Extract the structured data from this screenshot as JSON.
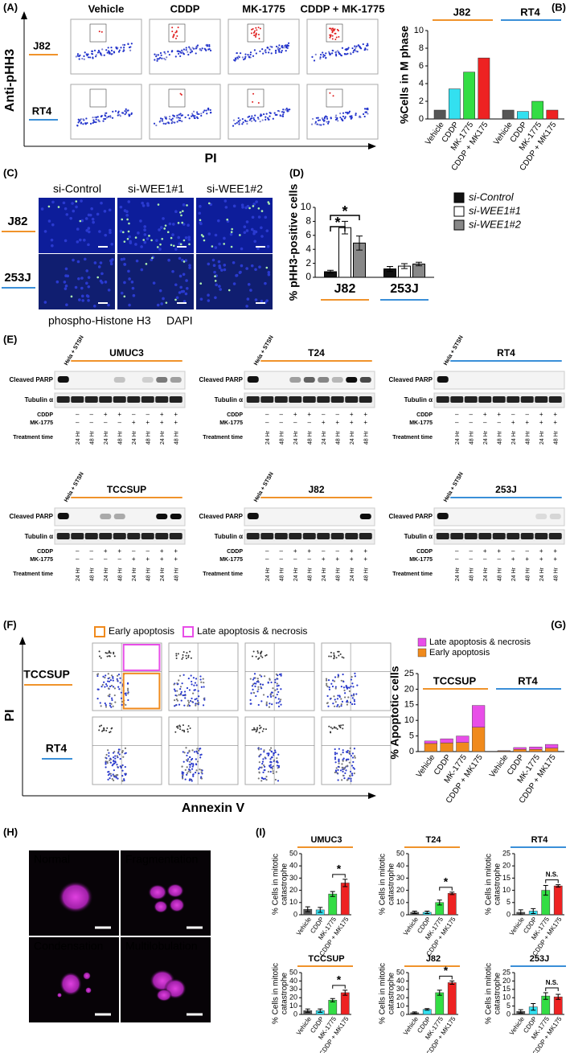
{
  "panel_a": {
    "label": "(A)",
    "columns": [
      "Vehicle",
      "CDDP",
      "MK-1775",
      "CDDP + MK-1775"
    ],
    "rows": [
      "J82",
      "RT4"
    ],
    "row_colors": [
      "#f0932b",
      "#3a8fd8"
    ],
    "y_label": "Anti-pHH3",
    "x_label": "PI"
  },
  "panel_c": {
    "label": "(C)",
    "columns": [
      "si-Control",
      "si-WEE1#1",
      "si-WEE1#2"
    ],
    "rows": [
      "J82",
      "253J"
    ],
    "row_colors": [
      "#f0932b",
      "#3a8fd8"
    ],
    "stains": [
      "phospho-Histone H3",
      "DAPI"
    ],
    "stain_colors": [
      "#22cc22",
      "#1a2ad8"
    ]
  },
  "panel_e": {
    "label": "(E)",
    "control_lane": "Hela + STSN",
    "bands": [
      "Cleaved PARP",
      "Tubulin α"
    ],
    "treatments": [
      "CDDP",
      "MK-1775"
    ],
    "lane_rows": [
      [
        "–",
        "–",
        "+",
        "+",
        "–",
        "–",
        "+",
        "+"
      ],
      [
        "–",
        "–",
        "–",
        "–",
        "+",
        "+",
        "+",
        "+"
      ]
    ],
    "time_label": "Treatment time",
    "times": [
      "24 Hr",
      "48 Hr",
      "24 Hr",
      "48 Hr",
      "24 Hr",
      "48 Hr",
      "24 Hr",
      "48 Hr"
    ],
    "blots": [
      {
        "name": "UMUC3",
        "line_color": "#f0932b"
      },
      {
        "name": "T24",
        "line_color": "#f0932b"
      },
      {
        "name": "RT4",
        "line_color": "#3a8fd8"
      },
      {
        "name": "TCCSUP",
        "line_color": "#f0932b"
      },
      {
        "name": "J82",
        "line_color": "#f0932b"
      },
      {
        "name": "253J",
        "line_color": "#3a8fd8"
      }
    ]
  },
  "panel_f": {
    "label": "(F)",
    "gates": [
      "Early apoptosis",
      "Late apoptosis & necrosis"
    ],
    "gate_colors": [
      "#f08a1c",
      "#e84ee8"
    ],
    "rows": [
      "TCCSUP",
      "RT4"
    ],
    "row_colors": [
      "#f0932b",
      "#3a8fd8"
    ],
    "y_label": "PI",
    "x_label": "Annexin V"
  },
  "panel_h": {
    "label": "(H)",
    "images": [
      "Normal",
      "Fragmentation",
      "Condensation",
      "Multilobulation"
    ]
  },
  "panel_i": {
    "label": "(I)"
  },
  "chart_data": [
    {
      "type": "bar",
      "panel_label": "(B)",
      "y_label": "%Cells in M phase",
      "ylim": [
        0,
        10
      ],
      "yticks": [
        0,
        2,
        4,
        6,
        8,
        10
      ],
      "bar_colors": [
        "#555555",
        "#33e0f0",
        "#33dd44",
        "#ee2222"
      ],
      "groups": [
        {
          "name": "J82",
          "color": "#f0932b",
          "categories": [
            "Vehicle",
            "CDDP",
            "MK-1775",
            "CDDP + MK175"
          ],
          "values": [
            1.0,
            3.4,
            5.3,
            6.9
          ]
        },
        {
          "name": "RT4",
          "color": "#3a8fd8",
          "categories": [
            "Vehicle",
            "CDDP",
            "MK-1775",
            "CDDP + MK175"
          ],
          "values": [
            1.0,
            0.85,
            2.0,
            1.0
          ]
        }
      ]
    },
    {
      "type": "grouped_bar",
      "panel_label": "(D)",
      "y_label": "% pHH3-positive cells",
      "ylim": [
        0,
        10
      ],
      "yticks": [
        0,
        2,
        4,
        6,
        8,
        10
      ],
      "categories": [
        "J82",
        "253J"
      ],
      "category_colors": [
        "#f0932b",
        "#3a8fd8"
      ],
      "series": [
        {
          "name": "si-Control",
          "color": "#111111",
          "values": [
            0.8,
            1.2
          ],
          "errors": [
            0.2,
            0.35
          ]
        },
        {
          "name": "si-WEE1#1",
          "color": "#ffffff",
          "values": [
            7.1,
            1.6
          ],
          "errors": [
            0.9,
            0.35
          ]
        },
        {
          "name": "si-WEE1#2",
          "color": "#888888",
          "values": [
            4.9,
            1.9
          ],
          "errors": [
            1.0,
            0.25
          ]
        }
      ],
      "annotations": [
        "*",
        "*"
      ]
    },
    {
      "type": "stacked_bar",
      "panel_label": "(G)",
      "y_label": "% Apoptotic cells",
      "ylim": [
        0,
        25
      ],
      "yticks": [
        0,
        5,
        10,
        15,
        20,
        25
      ],
      "series": [
        {
          "name": "Late apoptosis & necrosis",
          "color": "#e84ee8"
        },
        {
          "name": "Early apoptosis",
          "color": "#f08a1c"
        }
      ],
      "groups": [
        {
          "name": "TCCSUP",
          "color": "#f0932b",
          "categories": [
            "Vehicle",
            "CDDP",
            "MK-1775",
            "CDDP + MK175"
          ],
          "values": [
            [
              0.8,
              1.3,
              2.1,
              7.0
            ],
            [
              2.6,
              2.8,
              2.9,
              7.8
            ]
          ]
        },
        {
          "name": "RT4",
          "color": "#3a8fd8",
          "categories": [
            "Vehicle",
            "CDDP",
            "MK-1775",
            "CDDP + MK175"
          ],
          "values": [
            [
              0.1,
              0.6,
              0.8,
              1.2
            ],
            [
              0.2,
              0.7,
              0.7,
              1.1
            ]
          ]
        }
      ]
    },
    {
      "type": "bar",
      "title": "UMUC3",
      "title_color": "#f0932b",
      "y_label": [
        "% Cells in mitotic",
        "catastrophe"
      ],
      "ylim": [
        0,
        50
      ],
      "yticks": [
        0,
        10,
        20,
        30,
        40,
        50
      ],
      "categories": [
        "Vehicle",
        "CDDP",
        "MK-1775",
        "CDDP + MK175"
      ],
      "values": [
        4.5,
        4,
        17,
        26
      ],
      "errors": [
        2,
        2,
        2,
        3
      ],
      "colors": [
        "#555555",
        "#33e0f0",
        "#33dd44",
        "#ee2222"
      ],
      "annotation": "*"
    },
    {
      "type": "bar",
      "title": "T24",
      "title_color": "#f0932b",
      "y_label": [
        "% Cells in mitotic",
        "catastrophe"
      ],
      "ylim": [
        0,
        50
      ],
      "yticks": [
        0,
        10,
        20,
        30,
        40,
        50
      ],
      "categories": [
        "Vehicle",
        "CDDP",
        "MK-1775",
        "CDDP + MK175"
      ],
      "values": [
        2,
        2,
        10,
        17.5
      ],
      "errors": [
        1,
        1,
        2,
        1
      ],
      "colors": [
        "#555555",
        "#33e0f0",
        "#33dd44",
        "#ee2222"
      ],
      "annotation": "*"
    },
    {
      "type": "bar",
      "title": "RT4",
      "title_color": "#3a8fd8",
      "y_label": [
        "% Cells in mitotic",
        "catastrophe"
      ],
      "ylim": [
        0,
        25
      ],
      "yticks": [
        0,
        5,
        10,
        15,
        20,
        25
      ],
      "categories": [
        "Vehicle",
        "CDDP",
        "MK-1775",
        "CDDP + MK175"
      ],
      "values": [
        1,
        1.5,
        10,
        11.8
      ],
      "errors": [
        1,
        1,
        2,
        0.5
      ],
      "colors": [
        "#555555",
        "#33e0f0",
        "#33dd44",
        "#ee2222"
      ],
      "annotation": "N.S."
    },
    {
      "type": "bar",
      "title": "TCCSUP",
      "title_color": "#f0932b",
      "y_label": [
        "% Cells in mitotic",
        "catastrophe"
      ],
      "ylim": [
        0,
        50
      ],
      "yticks": [
        0,
        10,
        20,
        30,
        40,
        50
      ],
      "categories": [
        "Vehicle",
        "CDDP",
        "MK-1775",
        "CDDP + MK175"
      ],
      "values": [
        4.5,
        4.5,
        17,
        26
      ],
      "errors": [
        2,
        2,
        2,
        3
      ],
      "colors": [
        "#555555",
        "#33e0f0",
        "#33dd44",
        "#ee2222"
      ],
      "annotation": "*"
    },
    {
      "type": "bar",
      "title": "J82",
      "title_color": "#f0932b",
      "y_label": [
        "% Cells in mitotic",
        "catastrophe"
      ],
      "ylim": [
        0,
        50
      ],
      "yticks": [
        0,
        10,
        20,
        30,
        40,
        50
      ],
      "categories": [
        "Vehicle",
        "CDDP",
        "MK-1775",
        "CDDP + MK175"
      ],
      "values": [
        2,
        6,
        26,
        38
      ],
      "errors": [
        1,
        1,
        3,
        2
      ],
      "colors": [
        "#555555",
        "#33e0f0",
        "#33dd44",
        "#ee2222"
      ],
      "annotation": "*"
    },
    {
      "type": "bar",
      "title": "253J",
      "title_color": "#3a8fd8",
      "y_label": [
        "% Cells in mitotic",
        "catastrophe"
      ],
      "ylim": [
        0,
        25
      ],
      "yticks": [
        0,
        5,
        10,
        15,
        20,
        25
      ],
      "categories": [
        "Vehicle",
        "CDDP",
        "MK-1775",
        "CDDP + MK175"
      ],
      "values": [
        1.8,
        4.5,
        11,
        10.5
      ],
      "errors": [
        1,
        2,
        2,
        1.5
      ],
      "colors": [
        "#555555",
        "#33e0f0",
        "#33dd44",
        "#ee2222"
      ],
      "annotation": "N.S."
    }
  ]
}
